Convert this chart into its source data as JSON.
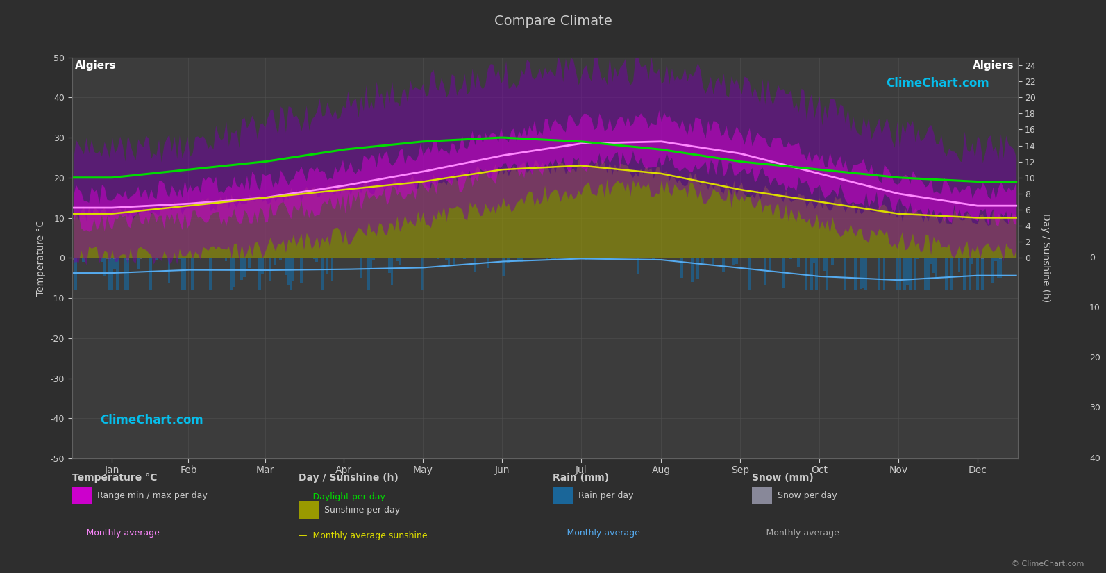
{
  "title": "Compare Climate",
  "city_left": "Algiers",
  "city_right": "Algiers",
  "background_color": "#2e2e2e",
  "plot_bg_color": "#3c3c3c",
  "grid_color": "#505050",
  "text_color": "#cccccc",
  "temp_ylim": [
    -50,
    50
  ],
  "rain_axis_ylim": [
    0,
    40
  ],
  "sunshine_axis_ylim": [
    0,
    24
  ],
  "months": [
    "Jan",
    "Feb",
    "Mar",
    "Apr",
    "May",
    "Jun",
    "Jul",
    "Aug",
    "Sep",
    "Oct",
    "Nov",
    "Dec"
  ],
  "days_per_month": [
    31,
    28,
    31,
    30,
    31,
    30,
    31,
    31,
    30,
    31,
    30,
    31
  ],
  "temp_max_daily": [
    16.0,
    17.5,
    19.5,
    22.5,
    26.5,
    31.0,
    34.0,
    34.5,
    30.5,
    25.5,
    20.0,
    17.0
  ],
  "temp_min_daily": [
    9.0,
    9.5,
    11.0,
    13.5,
    17.0,
    21.0,
    24.0,
    24.5,
    22.0,
    17.0,
    13.0,
    10.0
  ],
  "temp_avg_monthly": [
    12.5,
    13.5,
    15.0,
    18.0,
    21.5,
    25.5,
    28.5,
    29.0,
    26.0,
    21.0,
    16.0,
    13.0
  ],
  "temp_max_extreme_daily": [
    26,
    27,
    32,
    37,
    42,
    45,
    46,
    46,
    42,
    36,
    30,
    26
  ],
  "temp_min_extreme_daily": [
    1,
    1,
    3,
    6,
    10,
    14,
    18,
    18,
    15,
    9,
    5,
    2
  ],
  "daylight_hours": [
    10.0,
    11.0,
    12.0,
    13.5,
    14.5,
    15.0,
    14.5,
    13.5,
    12.0,
    11.0,
    10.0,
    9.5
  ],
  "sunshine_hours_daily": [
    5.5,
    6.5,
    7.5,
    8.5,
    9.5,
    11.0,
    11.5,
    10.5,
    8.5,
    7.0,
    5.5,
    5.0
  ],
  "sunshine_avg_monthly": [
    5.5,
    6.5,
    7.5,
    8.5,
    9.5,
    11.0,
    11.5,
    10.5,
    8.5,
    7.0,
    5.5,
    5.0
  ],
  "rain_monthly_mm": [
    54,
    43,
    44,
    41,
    35,
    13,
    3,
    7,
    36,
    66,
    79,
    63
  ],
  "rain_monthly_avg_mm": [
    54,
    43,
    44,
    41,
    35,
    13,
    3,
    7,
    36,
    66,
    79,
    63
  ],
  "snow_monthly_mm": [
    3,
    2,
    0,
    0,
    0,
    0,
    0,
    0,
    0,
    0,
    0,
    2
  ],
  "sunshine_temp_scale": 2.0,
  "rain_temp_scale": -0.125,
  "rain_bar_max_temp": -8,
  "logo_color": "#00ccff",
  "watermark_upper_text": "ClimeChart.com",
  "watermark_lower_text": "ClimeChart.com",
  "copyright_text": "© ClimeChart.com"
}
